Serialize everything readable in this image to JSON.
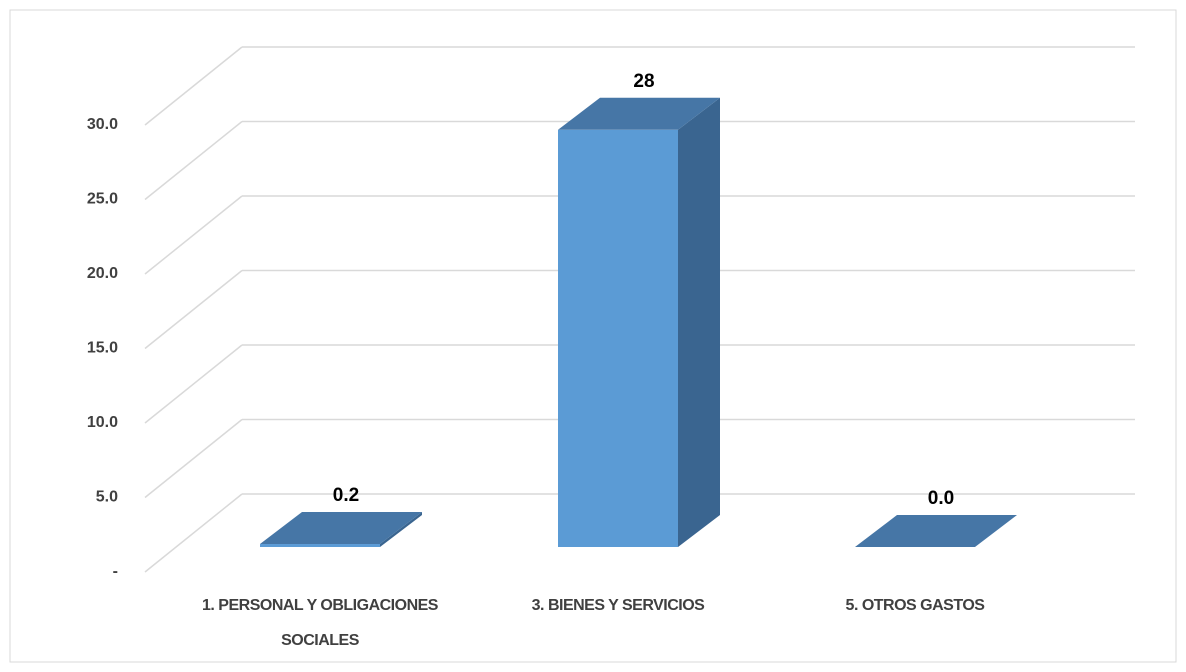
{
  "chart_data": {
    "type": "bar3d",
    "categories": [
      "1. PERSONAL Y OBLIGACIONES SOCIALES",
      "3. BIENES Y SERVICIOS",
      "5. OTROS GASTOS"
    ],
    "values": [
      0.2,
      28,
      0.0
    ],
    "value_labels": [
      "0.2",
      "28",
      "0.0"
    ],
    "color": "#5b9bd5",
    "ylim": [
      0,
      30
    ],
    "yticks": [
      {
        "value": 0,
        "label": "-"
      },
      {
        "value": 5,
        "label": "5.0"
      },
      {
        "value": 10,
        "label": "10.0"
      },
      {
        "value": 15,
        "label": "15.0"
      },
      {
        "value": 20,
        "label": "20.0"
      },
      {
        "value": 25,
        "label": "25.0"
      },
      {
        "value": 30,
        "label": "30.0"
      }
    ],
    "grid": true
  }
}
